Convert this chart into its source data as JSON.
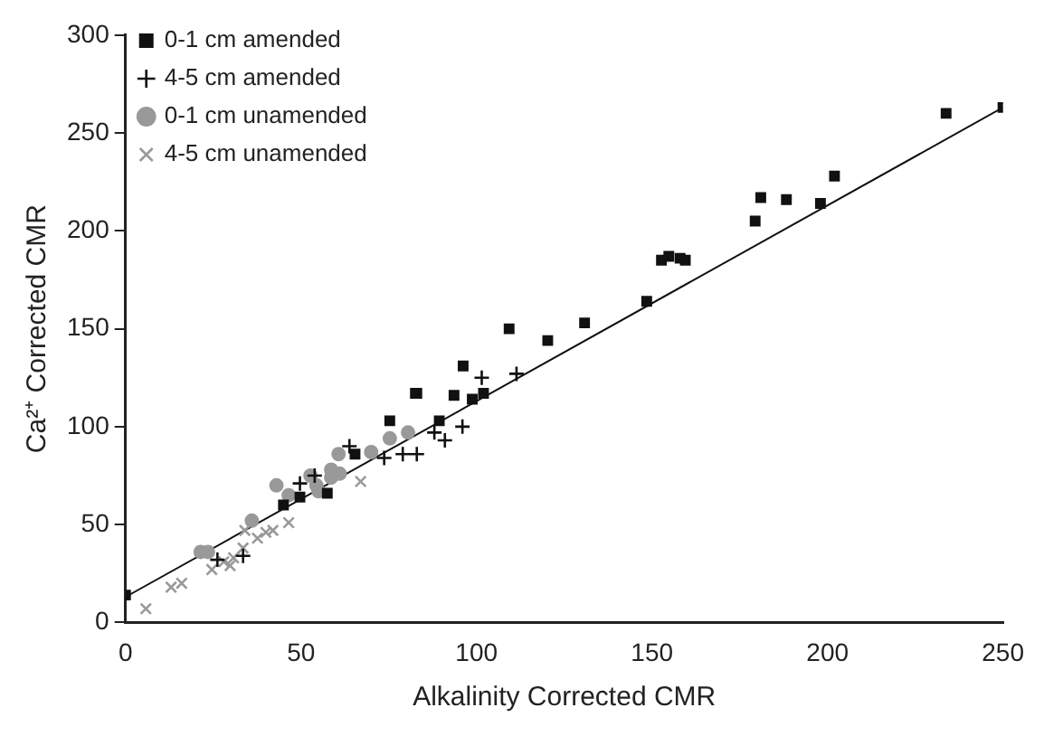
{
  "chart_data": {
    "type": "scatter",
    "xlabel": "Alkalinity Corrected CMR",
    "ylabel": "Ca²⁺ Corrected CMR",
    "xlim": [
      0,
      250
    ],
    "ylim": [
      0,
      300
    ],
    "xticks": [
      0,
      50,
      100,
      150,
      200,
      250
    ],
    "yticks": [
      0,
      50,
      100,
      150,
      200,
      250,
      300
    ],
    "grid": false,
    "legend": "top left",
    "series": [
      {
        "name": "0-1 cm amended",
        "color": "#111111",
        "marker": "square",
        "x": [
          0,
          45,
          49.7,
          57.5,
          65.4,
          75.3,
          83,
          82.6,
          89.4,
          93.6,
          96.2,
          98.8,
          102,
          109.3,
          120.3,
          130.8,
          148.5,
          152.7,
          154.8,
          158,
          159.5,
          179.4,
          181,
          188.3,
          198,
          202,
          233.8,
          250
        ],
        "values": [
          14,
          60,
          64,
          66,
          86,
          103,
          117,
          117,
          103,
          116,
          131,
          114,
          117,
          150,
          144,
          153,
          164,
          185,
          187,
          186,
          185,
          205,
          217,
          216,
          214,
          228,
          260,
          263
        ]
      },
      {
        "name": "4-5 cm amended",
        "color": "#111111",
        "marker": "cross",
        "x": [
          26.2,
          33.5,
          49.7,
          53.9,
          63.8,
          73.7,
          79,
          83,
          88,
          91,
          96,
          101.5,
          111.4
        ],
        "values": [
          32,
          34,
          71,
          75,
          90,
          84,
          86,
          86,
          97,
          93,
          100,
          125,
          127
        ]
      },
      {
        "name": "0-1 cm unamended",
        "color": "#999999",
        "marker": "circle",
        "x": [
          21.4,
          23.5,
          36,
          43,
          46.5,
          52.7,
          54.4,
          55,
          58.6,
          58.6,
          60.7,
          61,
          70,
          75.3,
          80.5
        ],
        "values": [
          36,
          36,
          52,
          70,
          65,
          75,
          70,
          67,
          74,
          78,
          86,
          76,
          87,
          94,
          97
        ]
      },
      {
        "name": "4-5 cm unamended",
        "color": "#999999",
        "marker": "x",
        "x": [
          5.8,
          13,
          16,
          24.6,
          28,
          29.8,
          30.8,
          33.5,
          34,
          37.6,
          40,
          42,
          46.5,
          67
        ],
        "values": [
          7,
          18,
          20,
          27,
          31,
          29,
          33,
          38,
          47,
          43,
          46,
          47,
          51,
          72
        ]
      },
      {
        "type": "line",
        "color": "#111111",
        "marker": "none",
        "x": [
          0,
          250
        ],
        "values": [
          13,
          263
        ]
      }
    ]
  }
}
